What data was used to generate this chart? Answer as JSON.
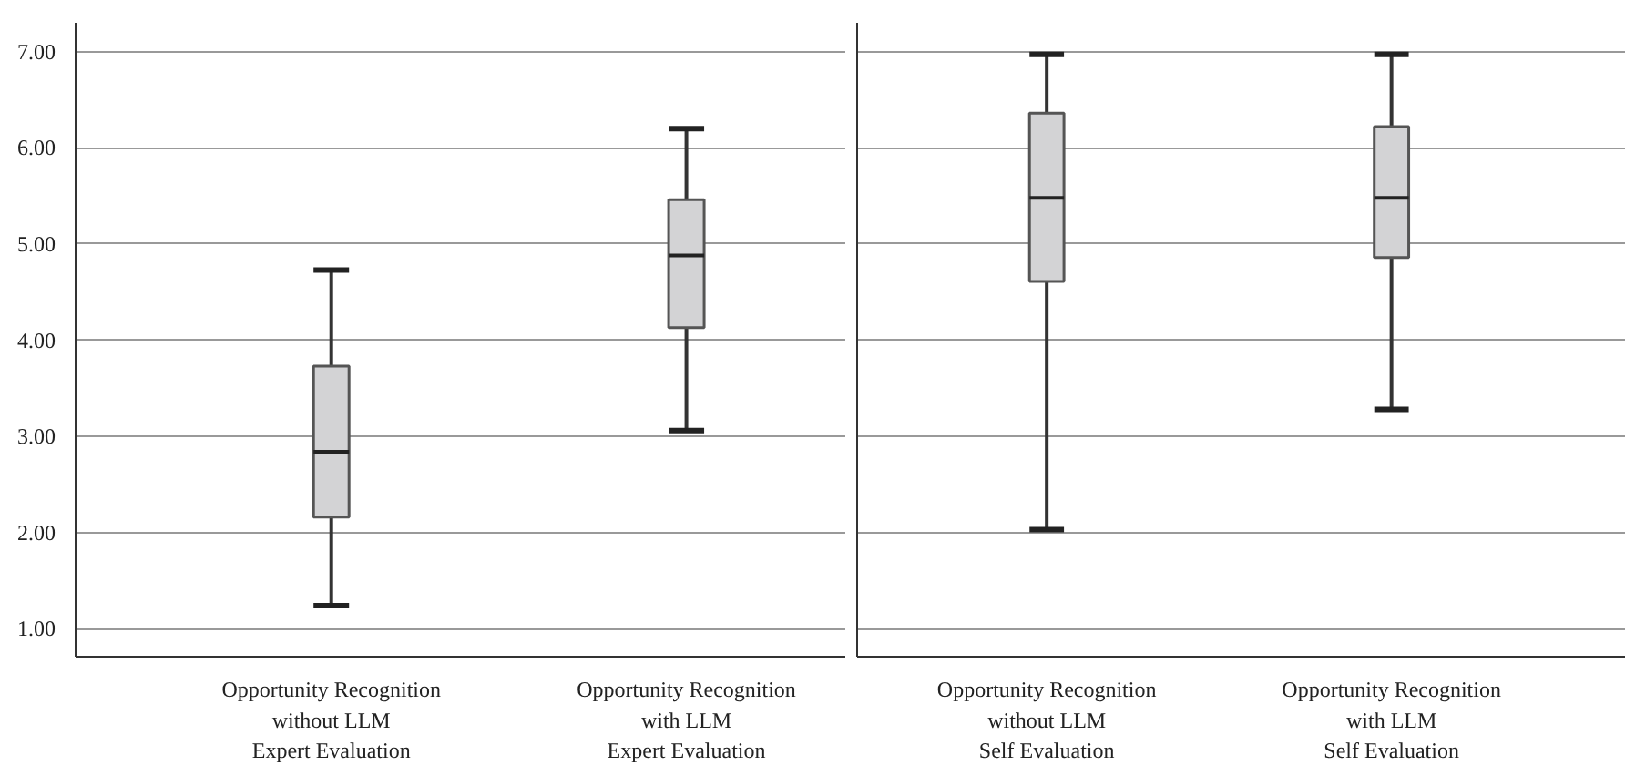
{
  "chart_data": [
    {
      "type": "box",
      "categories": [
        "Opportunity Recognition\nwithout LLM\nExpert Evaluation",
        "Opportunity Recognition\nwith LLM\nExpert Evaluation"
      ],
      "color": "#d3d3d5",
      "boxes": [
        {
          "low": 1.24,
          "q1": 2.16,
          "median": 2.84,
          "q3": 3.73,
          "high": 4.73
        },
        {
          "low": 3.06,
          "q1": 4.13,
          "median": 4.88,
          "q3": 5.46,
          "high": 6.2
        }
      ],
      "ylim": [
        0.71,
        7.3
      ],
      "yticks": [
        {
          "value": 1,
          "label": "1.00"
        },
        {
          "value": 2,
          "label": "2.00"
        },
        {
          "value": 3,
          "label": "3.00"
        },
        {
          "value": 4,
          "label": "4.00"
        },
        {
          "value": 5,
          "label": "5.00"
        },
        {
          "value": 6,
          "label": "6.00"
        },
        {
          "value": 7,
          "label": "7.00"
        }
      ],
      "grid": "y"
    },
    {
      "type": "box",
      "categories": [
        "Opportunity Recognition\nwithout LLM\nSelf Evaluation",
        "Opportunity Recognition\nwith LLM\nSelf Evaluation"
      ],
      "color": "#d3d3d5",
      "boxes": [
        {
          "low": 2.03,
          "q1": 4.61,
          "median": 5.48,
          "q3": 6.36,
          "high": 6.97
        },
        {
          "low": 3.28,
          "q1": 4.86,
          "median": 5.48,
          "q3": 6.22,
          "high": 6.97
        }
      ],
      "ylim": [
        0.71,
        7.3
      ],
      "yticks": [
        {
          "value": 1,
          "label": null
        },
        {
          "value": 2,
          "label": null
        },
        {
          "value": 3,
          "label": null
        },
        {
          "value": 4,
          "label": null
        },
        {
          "value": 5,
          "label": null
        },
        {
          "value": 6,
          "label": null
        },
        {
          "value": 7,
          "label": null
        }
      ],
      "grid": "y",
      "tick_labels": "x"
    }
  ]
}
